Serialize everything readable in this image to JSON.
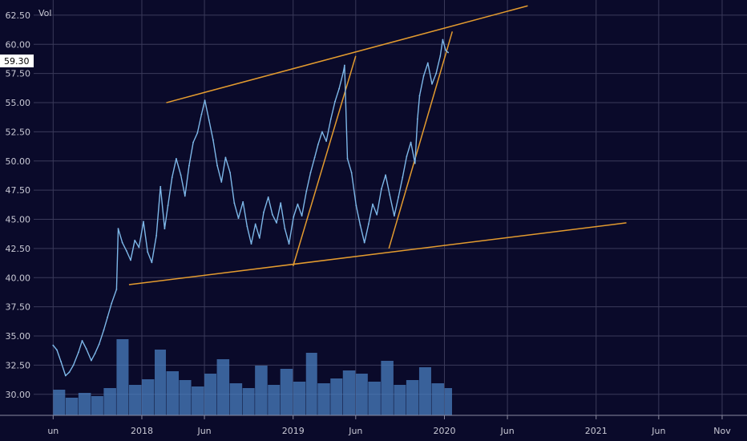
{
  "legend": {
    "label": "Vol"
  },
  "price_badge": {
    "value": "59.30"
  },
  "colors": {
    "background": "#0a0a2a",
    "grid": "#3a3a5a",
    "price": "#7db7e8",
    "volume": "#4a7fc0",
    "trendline": "#e39b2f",
    "axis_text": "#c8c8d4"
  },
  "chart_data": {
    "type": "line",
    "title": "",
    "y_ticks": [
      "30.00",
      "32.50",
      "35.00",
      "37.50",
      "40.00",
      "42.50",
      "45.00",
      "47.50",
      "50.00",
      "52.50",
      "55.00",
      "57.50",
      "60.00",
      "62.50"
    ],
    "ylim": [
      28.2,
      63.8
    ],
    "xlim": [
      "2017-04-15",
      "2021-12-31"
    ],
    "x_ticks": [
      {
        "date": "2017-06-01",
        "label": "un"
      },
      {
        "date": "2018-01-01",
        "label": "2018"
      },
      {
        "date": "2018-06-01",
        "label": "Jun"
      },
      {
        "date": "2019-01-01",
        "label": "2019"
      },
      {
        "date": "2019-06-01",
        "label": "Jun"
      },
      {
        "date": "2020-01-01",
        "label": "2020"
      },
      {
        "date": "2020-06-01",
        "label": "Jun"
      },
      {
        "date": "2021-01-01",
        "label": "2021"
      },
      {
        "date": "2021-06-01",
        "label": "Jun"
      },
      {
        "date": "2021-11-01",
        "label": "Nov"
      }
    ],
    "series": [
      {
        "values": [
          [
            "2017-06-01",
            34.2
          ],
          [
            "2017-06-10",
            33.8
          ],
          [
            "2017-06-20",
            32.8
          ],
          [
            "2017-07-01",
            31.6
          ],
          [
            "2017-07-10",
            31.9
          ],
          [
            "2017-07-20",
            32.5
          ],
          [
            "2017-08-01",
            33.6
          ],
          [
            "2017-08-10",
            34.6
          ],
          [
            "2017-08-20",
            33.9
          ],
          [
            "2017-09-01",
            32.9
          ],
          [
            "2017-09-10",
            33.5
          ],
          [
            "2017-09-20",
            34.3
          ],
          [
            "2017-10-01",
            35.5
          ],
          [
            "2017-10-10",
            36.6
          ],
          [
            "2017-10-20",
            37.8
          ],
          [
            "2017-11-01",
            39.0
          ],
          [
            "2017-11-05",
            44.2
          ],
          [
            "2017-11-15",
            43.0
          ],
          [
            "2017-11-25",
            42.3
          ],
          [
            "2017-12-05",
            41.5
          ],
          [
            "2017-12-15",
            43.2
          ],
          [
            "2017-12-25",
            42.6
          ],
          [
            "2018-01-05",
            44.8
          ],
          [
            "2018-01-15",
            42.2
          ],
          [
            "2018-01-25",
            41.3
          ],
          [
            "2018-02-05",
            43.6
          ],
          [
            "2018-02-15",
            47.8
          ],
          [
            "2018-02-25",
            44.2
          ],
          [
            "2018-03-05",
            46.2
          ],
          [
            "2018-03-15",
            48.6
          ],
          [
            "2018-03-25",
            50.2
          ],
          [
            "2018-04-05",
            48.8
          ],
          [
            "2018-04-15",
            47.0
          ],
          [
            "2018-04-25",
            49.6
          ],
          [
            "2018-05-05",
            51.6
          ],
          [
            "2018-05-15",
            52.4
          ],
          [
            "2018-05-25",
            54.0
          ],
          [
            "2018-06-02",
            55.2
          ],
          [
            "2018-06-12",
            53.5
          ],
          [
            "2018-06-22",
            51.8
          ],
          [
            "2018-07-02",
            49.6
          ],
          [
            "2018-07-12",
            48.2
          ],
          [
            "2018-07-22",
            50.3
          ],
          [
            "2018-08-02",
            49.0
          ],
          [
            "2018-08-12",
            46.4
          ],
          [
            "2018-08-22",
            45.1
          ],
          [
            "2018-09-02",
            46.5
          ],
          [
            "2018-09-12",
            44.4
          ],
          [
            "2018-09-22",
            42.9
          ],
          [
            "2018-10-02",
            44.6
          ],
          [
            "2018-10-12",
            43.4
          ],
          [
            "2018-10-22",
            45.6
          ],
          [
            "2018-11-02",
            46.9
          ],
          [
            "2018-11-12",
            45.4
          ],
          [
            "2018-11-22",
            44.7
          ],
          [
            "2018-12-02",
            46.4
          ],
          [
            "2018-12-12",
            44.2
          ],
          [
            "2018-12-22",
            42.9
          ],
          [
            "2019-01-02",
            45.2
          ],
          [
            "2019-01-12",
            46.3
          ],
          [
            "2019-01-22",
            45.3
          ],
          [
            "2019-02-02",
            47.4
          ],
          [
            "2019-02-12",
            49.0
          ],
          [
            "2019-02-22",
            50.3
          ],
          [
            "2019-03-02",
            51.4
          ],
          [
            "2019-03-12",
            52.5
          ],
          [
            "2019-03-22",
            51.7
          ],
          [
            "2019-04-02",
            53.6
          ],
          [
            "2019-04-12",
            55.1
          ],
          [
            "2019-04-22",
            56.2
          ],
          [
            "2019-05-02",
            57.6
          ],
          [
            "2019-05-05",
            58.2
          ],
          [
            "2019-05-12",
            50.2
          ],
          [
            "2019-05-22",
            49.0
          ],
          [
            "2019-06-02",
            46.2
          ],
          [
            "2019-06-12",
            44.5
          ],
          [
            "2019-06-22",
            43.0
          ],
          [
            "2019-07-02",
            44.6
          ],
          [
            "2019-07-12",
            46.3
          ],
          [
            "2019-07-22",
            45.4
          ],
          [
            "2019-08-02",
            47.6
          ],
          [
            "2019-08-12",
            48.8
          ],
          [
            "2019-08-22",
            47.1
          ],
          [
            "2019-09-02",
            45.3
          ],
          [
            "2019-09-12",
            46.9
          ],
          [
            "2019-09-22",
            48.6
          ],
          [
            "2019-10-02",
            50.4
          ],
          [
            "2019-10-12",
            51.6
          ],
          [
            "2019-10-22",
            49.8
          ],
          [
            "2019-10-28",
            53.6
          ],
          [
            "2019-11-02",
            55.6
          ],
          [
            "2019-11-12",
            57.3
          ],
          [
            "2019-11-22",
            58.4
          ],
          [
            "2019-12-02",
            56.6
          ],
          [
            "2019-12-12",
            57.5
          ],
          [
            "2019-12-22",
            59.0
          ],
          [
            "2019-12-28",
            60.4
          ],
          [
            "2020-01-04",
            59.5
          ],
          [
            "2020-01-10",
            59.3
          ]
        ]
      }
    ],
    "volume": [
      [
        "2017-06-01",
        0.32
      ],
      [
        "2017-07-01",
        0.22
      ],
      [
        "2017-08-01",
        0.28
      ],
      [
        "2017-09-01",
        0.24
      ],
      [
        "2017-10-01",
        0.34
      ],
      [
        "2017-11-01",
        0.95
      ],
      [
        "2017-12-01",
        0.38
      ],
      [
        "2018-01-01",
        0.45
      ],
      [
        "2018-02-01",
        0.82
      ],
      [
        "2018-03-01",
        0.55
      ],
      [
        "2018-04-01",
        0.44
      ],
      [
        "2018-05-01",
        0.36
      ],
      [
        "2018-06-01",
        0.52
      ],
      [
        "2018-07-01",
        0.7
      ],
      [
        "2018-08-01",
        0.4
      ],
      [
        "2018-09-01",
        0.34
      ],
      [
        "2018-10-01",
        0.62
      ],
      [
        "2018-11-01",
        0.38
      ],
      [
        "2018-12-01",
        0.58
      ],
      [
        "2019-01-01",
        0.42
      ],
      [
        "2019-02-01",
        0.78
      ],
      [
        "2019-03-01",
        0.4
      ],
      [
        "2019-04-01",
        0.46
      ],
      [
        "2019-05-01",
        0.56
      ],
      [
        "2019-06-01",
        0.52
      ],
      [
        "2019-07-01",
        0.42
      ],
      [
        "2019-08-01",
        0.68
      ],
      [
        "2019-09-01",
        0.38
      ],
      [
        "2019-10-01",
        0.44
      ],
      [
        "2019-11-01",
        0.6
      ],
      [
        "2019-12-01",
        0.4
      ],
      [
        "2020-01-01",
        0.34
      ]
    ],
    "trendlines": [
      {
        "from": [
          "2018-03-01",
          55.0
        ],
        "to": [
          "2020-07-20",
          63.3
        ]
      },
      {
        "from": [
          "2017-12-01",
          39.4
        ],
        "to": [
          "2021-03-15",
          44.7
        ]
      },
      {
        "from": [
          "2019-01-01",
          41.0
        ],
        "to": [
          "2019-06-01",
          59.0
        ]
      },
      {
        "from": [
          "2019-08-20",
          42.5
        ],
        "to": [
          "2020-01-20",
          61.1
        ]
      }
    ]
  }
}
